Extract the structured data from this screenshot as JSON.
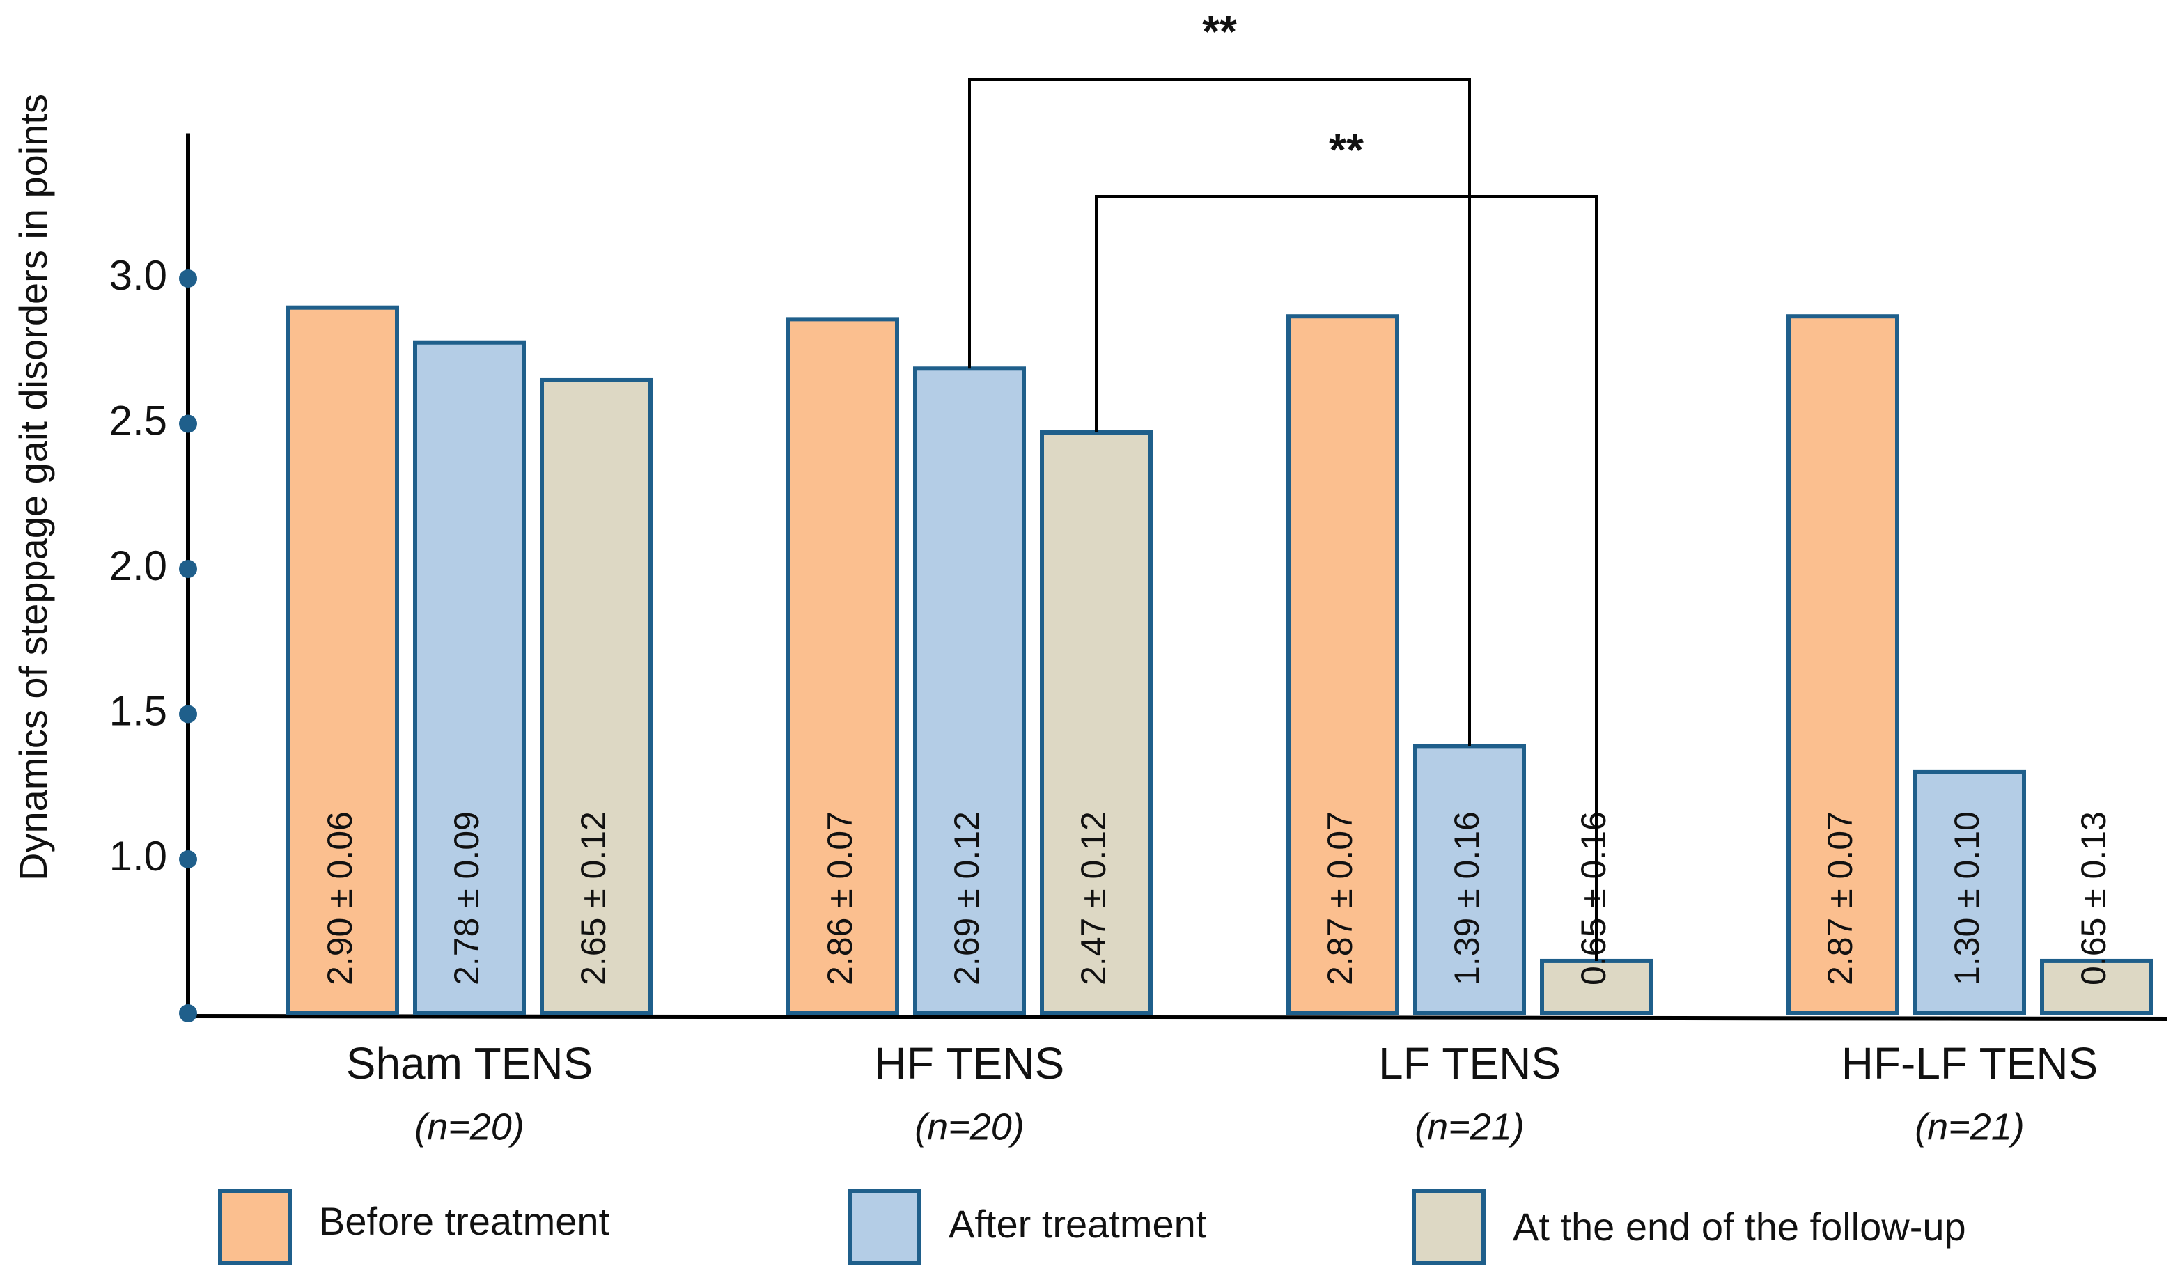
{
  "chart_data": {
    "type": "bar",
    "y_label": "Dynamics of steppage gait disorders in points",
    "categories": [
      "Sham TENS",
      "HF TENS",
      "LF TENS",
      "HF-LF TENS"
    ],
    "sample_sizes": [
      "(n=20)",
      "(n=20)",
      "(n=21)",
      "(n=21)"
    ],
    "series": [
      {
        "name": "Before treatment",
        "color": "#fbbf8f",
        "values": [
          2.9,
          2.86,
          2.87,
          2.87
        ],
        "value_labels": [
          "2.90 ± 0.06",
          "2.86 ± 0.07",
          "2.87 ± 0.07",
          "2.87 ± 0.07"
        ]
      },
      {
        "name": "After treatment",
        "color": "#b4cde6",
        "values": [
          2.78,
          2.69,
          1.39,
          1.3
        ],
        "value_labels": [
          "2.78 ± 0.09",
          "2.69 ± 0.12",
          "1.39 ± 0.16",
          "1.30 ± 0.10"
        ]
      },
      {
        "name": "At the end of the follow-up",
        "color": "#ddd8c4",
        "values": [
          2.65,
          2.47,
          0.65,
          0.65
        ],
        "value_labels": [
          "2.65 ± 0.12",
          "2.47 ± 0.12",
          "0.65 ± 0.16",
          "0.65 ± 0.13"
        ]
      }
    ],
    "ylim": [
      0.47,
      3.5
    ],
    "yticks": [
      {
        "value": 1,
        "label": "1.0"
      },
      {
        "value": 1.5,
        "label": "1.5"
      },
      {
        "value": 2,
        "label": "2.0"
      },
      {
        "value": 2.5,
        "label": "2.5"
      },
      {
        "value": 3,
        "label": "3.0"
      }
    ],
    "grid": false,
    "annotations": [
      "**",
      "**"
    ]
  }
}
